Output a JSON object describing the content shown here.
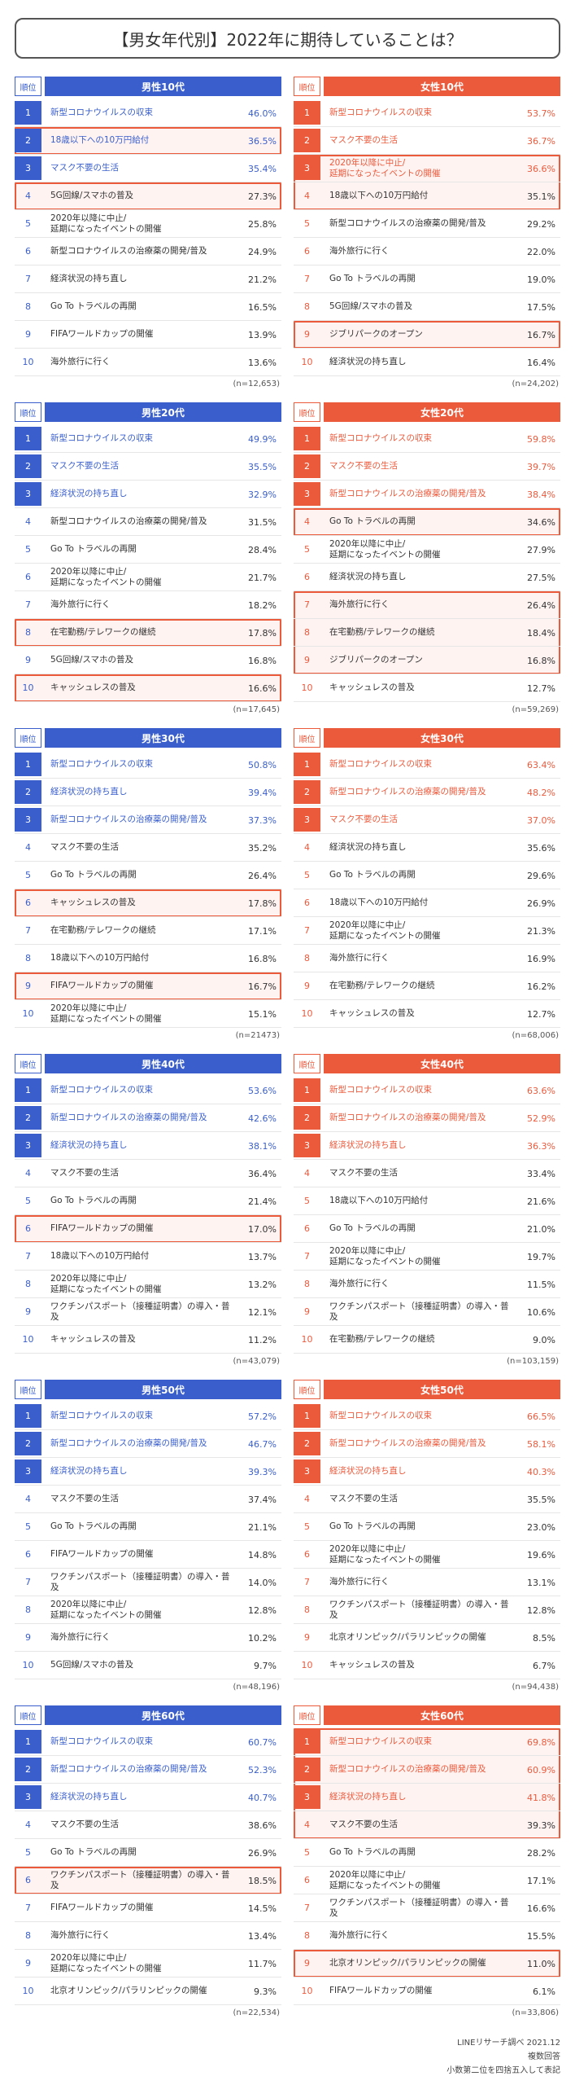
{
  "title": "【男女年代別】2022年に期待していることは？",
  "rank_label": "順位",
  "sections": [
    {
      "male": {
        "category": "男性10代",
        "n": "(n=12,653)",
        "highlights": [
          [
            2,
            2
          ],
          [
            4,
            4
          ]
        ],
        "rows": [
          {
            "rank": "1",
            "label": "新型コロナウイルスの収束",
            "pct": "46.0%"
          },
          {
            "rank": "2",
            "label": "18歳以下への10万円給付",
            "pct": "36.5%"
          },
          {
            "rank": "3",
            "label": "マスク不要の生活",
            "pct": "35.4%"
          },
          {
            "rank": "4",
            "label": "5G回線/スマホの普及",
            "pct": "27.3%"
          },
          {
            "rank": "5",
            "label": "2020年以降に中止/\n延期になったイベントの開催",
            "pct": "25.8%"
          },
          {
            "rank": "6",
            "label": "新型コロナウイルスの治療薬の開発/普及",
            "pct": "24.9%"
          },
          {
            "rank": "7",
            "label": "経済状況の持ち直し",
            "pct": "21.2%"
          },
          {
            "rank": "8",
            "label": "Go To トラベルの再開",
            "pct": "16.5%"
          },
          {
            "rank": "9",
            "label": "FIFAワールドカップの開催",
            "pct": "13.9%"
          },
          {
            "rank": "10",
            "label": "海外旅行に行く",
            "pct": "13.6%"
          }
        ]
      },
      "female": {
        "category": "女性10代",
        "n": "(n=24,202)",
        "highlights": [
          [
            3,
            4
          ],
          [
            9,
            9
          ]
        ],
        "rows": [
          {
            "rank": "1",
            "label": "新型コロナウイルスの収束",
            "pct": "53.7%"
          },
          {
            "rank": "2",
            "label": "マスク不要の生活",
            "pct": "36.7%"
          },
          {
            "rank": "3",
            "label": "2020年以降に中止/\n延期になったイベントの開催",
            "pct": "36.6%"
          },
          {
            "rank": "4",
            "label": "18歳以下への10万円給付",
            "pct": "35.1%"
          },
          {
            "rank": "5",
            "label": "新型コロナウイルスの治療薬の開発/普及",
            "pct": "29.2%"
          },
          {
            "rank": "6",
            "label": "海外旅行に行く",
            "pct": "22.0%"
          },
          {
            "rank": "7",
            "label": "Go To トラベルの再開",
            "pct": "19.0%"
          },
          {
            "rank": "8",
            "label": "5G回線/スマホの普及",
            "pct": "17.5%"
          },
          {
            "rank": "9",
            "label": "ジブリパークのオープン",
            "pct": "16.7%"
          },
          {
            "rank": "10",
            "label": "経済状況の持ち直し",
            "pct": "16.4%"
          }
        ]
      }
    },
    {
      "male": {
        "category": "男性20代",
        "n": "(n=17,645)",
        "highlights": [
          [
            8,
            8
          ],
          [
            10,
            10
          ]
        ],
        "rows": [
          {
            "rank": "1",
            "label": "新型コロナウイルスの収束",
            "pct": "49.9%"
          },
          {
            "rank": "2",
            "label": "マスク不要の生活",
            "pct": "35.5%"
          },
          {
            "rank": "3",
            "label": "経済状況の持ち直し",
            "pct": "32.9%"
          },
          {
            "rank": "4",
            "label": "新型コロナウイルスの治療薬の開発/普及",
            "pct": "31.5%"
          },
          {
            "rank": "5",
            "label": "Go To トラベルの再開",
            "pct": "28.4%"
          },
          {
            "rank": "6",
            "label": "2020年以降に中止/\n延期になったイベントの開催",
            "pct": "21.7%"
          },
          {
            "rank": "7",
            "label": "海外旅行に行く",
            "pct": "18.2%"
          },
          {
            "rank": "8",
            "label": "在宅勤務/テレワークの継続",
            "pct": "17.8%"
          },
          {
            "rank": "9",
            "label": "5G回線/スマホの普及",
            "pct": "16.8%"
          },
          {
            "rank": "10",
            "label": "キャッシュレスの普及",
            "pct": "16.6%"
          }
        ]
      },
      "female": {
        "category": "女性20代",
        "n": "(n=59,269)",
        "highlights": [
          [
            4,
            4
          ],
          [
            7,
            9
          ]
        ],
        "rows": [
          {
            "rank": "1",
            "label": "新型コロナウイルスの収束",
            "pct": "59.8%"
          },
          {
            "rank": "2",
            "label": "マスク不要の生活",
            "pct": "39.7%"
          },
          {
            "rank": "3",
            "label": "新型コロナウイルスの治療薬の開発/普及",
            "pct": "38.4%"
          },
          {
            "rank": "4",
            "label": "Go To トラベルの再開",
            "pct": "34.6%"
          },
          {
            "rank": "5",
            "label": "2020年以降に中止/\n延期になったイベントの開催",
            "pct": "27.9%"
          },
          {
            "rank": "6",
            "label": "経済状況の持ち直し",
            "pct": "27.5%"
          },
          {
            "rank": "7",
            "label": "海外旅行に行く",
            "pct": "26.4%"
          },
          {
            "rank": "8",
            "label": "在宅勤務/テレワークの継続",
            "pct": "18.4%"
          },
          {
            "rank": "9",
            "label": "ジブリパークのオープン",
            "pct": "16.8%"
          },
          {
            "rank": "10",
            "label": "キャッシュレスの普及",
            "pct": "12.7%"
          }
        ]
      }
    },
    {
      "male": {
        "category": "男性30代",
        "n": "(n=21473)",
        "highlights": [
          [
            6,
            6
          ],
          [
            9,
            9
          ]
        ],
        "rows": [
          {
            "rank": "1",
            "label": "新型コロナウイルスの収束",
            "pct": "50.8%"
          },
          {
            "rank": "2",
            "label": "経済状況の持ち直し",
            "pct": "39.4%"
          },
          {
            "rank": "3",
            "label": "新型コロナウイルスの治療薬の開発/普及",
            "pct": "37.3%"
          },
          {
            "rank": "4",
            "label": "マスク不要の生活",
            "pct": "35.2%"
          },
          {
            "rank": "5",
            "label": "Go To トラベルの再開",
            "pct": "26.4%"
          },
          {
            "rank": "6",
            "label": "キャッシュレスの普及",
            "pct": "17.8%"
          },
          {
            "rank": "7",
            "label": "在宅勤務/テレワークの継続",
            "pct": "17.1%"
          },
          {
            "rank": "8",
            "label": "18歳以下への10万円給付",
            "pct": "16.8%"
          },
          {
            "rank": "9",
            "label": "FIFAワールドカップの開催",
            "pct": "16.7%"
          },
          {
            "rank": "10",
            "label": "2020年以降に中止/\n延期になったイベントの開催",
            "pct": "15.1%"
          }
        ]
      },
      "female": {
        "category": "女性30代",
        "n": "(n=68,006)",
        "highlights": [],
        "rows": [
          {
            "rank": "1",
            "label": "新型コロナウイルスの収束",
            "pct": "63.4%"
          },
          {
            "rank": "2",
            "label": "新型コロナウイルスの治療薬の開発/普及",
            "pct": "48.2%"
          },
          {
            "rank": "3",
            "label": "マスク不要の生活",
            "pct": "37.0%"
          },
          {
            "rank": "4",
            "label": "経済状況の持ち直し",
            "pct": "35.6%"
          },
          {
            "rank": "5",
            "label": "Go To トラベルの再開",
            "pct": "29.6%"
          },
          {
            "rank": "6",
            "label": "18歳以下への10万円給付",
            "pct": "26.9%"
          },
          {
            "rank": "7",
            "label": "2020年以降に中止/\n延期になったイベントの開催",
            "pct": "21.3%"
          },
          {
            "rank": "8",
            "label": "海外旅行に行く",
            "pct": "16.9%"
          },
          {
            "rank": "9",
            "label": "在宅勤務/テレワークの継続",
            "pct": "16.2%"
          },
          {
            "rank": "10",
            "label": "キャッシュレスの普及",
            "pct": "12.7%"
          }
        ]
      }
    },
    {
      "male": {
        "category": "男性40代",
        "n": "(n=43,079)",
        "highlights": [
          [
            6,
            6
          ]
        ],
        "rows": [
          {
            "rank": "1",
            "label": "新型コロナウイルスの収束",
            "pct": "53.6%"
          },
          {
            "rank": "2",
            "label": "新型コロナウイルスの治療薬の開発/普及",
            "pct": "42.6%"
          },
          {
            "rank": "3",
            "label": "経済状況の持ち直し",
            "pct": "38.1%"
          },
          {
            "rank": "4",
            "label": "マスク不要の生活",
            "pct": "36.4%"
          },
          {
            "rank": "5",
            "label": "Go To トラベルの再開",
            "pct": "21.4%"
          },
          {
            "rank": "6",
            "label": "FIFAワールドカップの開催",
            "pct": "17.0%"
          },
          {
            "rank": "7",
            "label": "18歳以下への10万円給付",
            "pct": "13.7%"
          },
          {
            "rank": "8",
            "label": "2020年以降に中止/\n延期になったイベントの開催",
            "pct": "13.2%"
          },
          {
            "rank": "9",
            "label": "ワクチンパスポート（接種証明書）の導入・普及",
            "pct": "12.1%"
          },
          {
            "rank": "10",
            "label": "キャッシュレスの普及",
            "pct": "11.2%"
          }
        ]
      },
      "female": {
        "category": "女性40代",
        "n": "(n=103,159)",
        "highlights": [],
        "rows": [
          {
            "rank": "1",
            "label": "新型コロナウイルスの収束",
            "pct": "63.6%"
          },
          {
            "rank": "2",
            "label": "新型コロナウイルスの治療薬の開発/普及",
            "pct": "52.9%"
          },
          {
            "rank": "3",
            "label": "経済状況の持ち直し",
            "pct": "36.3%"
          },
          {
            "rank": "4",
            "label": "マスク不要の生活",
            "pct": "33.4%"
          },
          {
            "rank": "5",
            "label": "18歳以下への10万円給付",
            "pct": "21.6%"
          },
          {
            "rank": "6",
            "label": "Go To トラベルの再開",
            "pct": "21.0%"
          },
          {
            "rank": "7",
            "label": "2020年以降に中止/\n延期になったイベントの開催",
            "pct": "19.7%"
          },
          {
            "rank": "8",
            "label": "海外旅行に行く",
            "pct": "11.5%"
          },
          {
            "rank": "9",
            "label": "ワクチンパスポート（接種証明書）の導入・普及",
            "pct": "10.6%"
          },
          {
            "rank": "10",
            "label": "在宅勤務/テレワークの継続",
            "pct": "9.0%"
          }
        ]
      }
    },
    {
      "male": {
        "category": "男性50代",
        "n": "(n=48,196)",
        "highlights": [],
        "rows": [
          {
            "rank": "1",
            "label": "新型コロナウイルスの収束",
            "pct": "57.2%"
          },
          {
            "rank": "2",
            "label": "新型コロナウイルスの治療薬の開発/普及",
            "pct": "46.7%"
          },
          {
            "rank": "3",
            "label": "経済状況の持ち直し",
            "pct": "39.3%"
          },
          {
            "rank": "4",
            "label": "マスク不要の生活",
            "pct": "37.4%"
          },
          {
            "rank": "5",
            "label": "Go To トラベルの再開",
            "pct": "21.1%"
          },
          {
            "rank": "6",
            "label": "FIFAワールドカップの開催",
            "pct": "14.8%"
          },
          {
            "rank": "7",
            "label": "ワクチンパスポート（接種証明書）の導入・普及",
            "pct": "14.0%"
          },
          {
            "rank": "8",
            "label": "2020年以降に中止/\n延期になったイベントの開催",
            "pct": "12.8%"
          },
          {
            "rank": "9",
            "label": "海外旅行に行く",
            "pct": "10.2%"
          },
          {
            "rank": "10",
            "label": "5G回線/スマホの普及",
            "pct": "9.7%"
          }
        ]
      },
      "female": {
        "category": "女性50代",
        "n": "(n=94,438)",
        "highlights": [],
        "rows": [
          {
            "rank": "1",
            "label": "新型コロナウイルスの収束",
            "pct": "66.5%"
          },
          {
            "rank": "2",
            "label": "新型コロナウイルスの治療薬の開発/普及",
            "pct": "58.1%"
          },
          {
            "rank": "3",
            "label": "経済状況の持ち直し",
            "pct": "40.3%"
          },
          {
            "rank": "4",
            "label": "マスク不要の生活",
            "pct": "35.5%"
          },
          {
            "rank": "5",
            "label": "Go To トラベルの再開",
            "pct": "23.0%"
          },
          {
            "rank": "6",
            "label": "2020年以降に中止/\n延期になったイベントの開催",
            "pct": "19.6%"
          },
          {
            "rank": "7",
            "label": "海外旅行に行く",
            "pct": "13.1%"
          },
          {
            "rank": "8",
            "label": "ワクチンパスポート（接種証明書）の導入・普及",
            "pct": "12.8%"
          },
          {
            "rank": "9",
            "label": "北京オリンピック/パラリンピックの開催",
            "pct": "8.5%"
          },
          {
            "rank": "10",
            "label": "キャッシュレスの普及",
            "pct": "6.7%"
          }
        ]
      }
    },
    {
      "male": {
        "category": "男性60代",
        "n": "(n=22,534)",
        "highlights": [
          [
            6,
            6
          ]
        ],
        "rows": [
          {
            "rank": "1",
            "label": "新型コロナウイルスの収束",
            "pct": "60.7%"
          },
          {
            "rank": "2",
            "label": "新型コロナウイルスの治療薬の開発/普及",
            "pct": "52.3%"
          },
          {
            "rank": "3",
            "label": "経済状況の持ち直し",
            "pct": "40.7%"
          },
          {
            "rank": "4",
            "label": "マスク不要の生活",
            "pct": "38.6%"
          },
          {
            "rank": "5",
            "label": "Go To トラベルの再開",
            "pct": "26.9%"
          },
          {
            "rank": "6",
            "label": "ワクチンパスポート（接種証明書）の導入・普及",
            "pct": "18.5%"
          },
          {
            "rank": "7",
            "label": "FIFAワールドカップの開催",
            "pct": "14.5%"
          },
          {
            "rank": "8",
            "label": "海外旅行に行く",
            "pct": "13.4%"
          },
          {
            "rank": "9",
            "label": "2020年以降に中止/\n延期になったイベントの開催",
            "pct": "11.7%"
          },
          {
            "rank": "10",
            "label": "北京オリンピック/パラリンピックの開催",
            "pct": "9.3%"
          }
        ]
      },
      "female": {
        "category": "女性60代",
        "n": "(n=33,806)",
        "highlights": [
          [
            1,
            4
          ],
          [
            9,
            9
          ]
        ],
        "rows": [
          {
            "rank": "1",
            "label": "新型コロナウイルスの収束",
            "pct": "69.8%"
          },
          {
            "rank": "2",
            "label": "新型コロナウイルスの治療薬の開発/普及",
            "pct": "60.9%"
          },
          {
            "rank": "3",
            "label": "経済状況の持ち直し",
            "pct": "41.8%"
          },
          {
            "rank": "4",
            "label": "マスク不要の生活",
            "pct": "39.3%"
          },
          {
            "rank": "5",
            "label": "Go To トラベルの再開",
            "pct": "28.2%"
          },
          {
            "rank": "6",
            "label": "2020年以降に中止/\n延期になったイベントの開催",
            "pct": "17.1%"
          },
          {
            "rank": "7",
            "label": "ワクチンパスポート（接種証明書）の導入・普及",
            "pct": "16.6%"
          },
          {
            "rank": "8",
            "label": "海外旅行に行く",
            "pct": "15.5%"
          },
          {
            "rank": "9",
            "label": "北京オリンピック/パラリンピックの開催",
            "pct": "11.0%"
          },
          {
            "rank": "10",
            "label": "FIFAワールドカップの開催",
            "pct": "6.1%"
          }
        ]
      }
    }
  ],
  "footer": {
    "source": "LINEリサーチ調べ 2021.12",
    "method": "複数回答",
    "rounding": "小数第二位を四捨五入して表記"
  }
}
